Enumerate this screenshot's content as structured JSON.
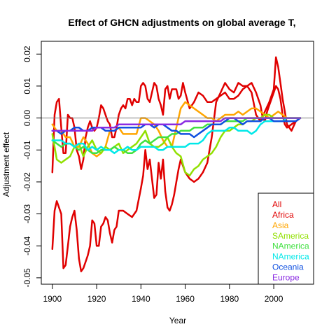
{
  "chart_data": {
    "type": "line",
    "title": "Effect of GHCN adjustments on global average T,",
    "xlabel": "Year",
    "ylabel": "Adjustment effect",
    "xlim": [
      1895,
      2018
    ],
    "ylim": [
      -0.052,
      0.024
    ],
    "x_ticks": [
      {
        "value": 1900,
        "label": "1900"
      },
      {
        "value": 1920,
        "label": "1920"
      },
      {
        "value": 1940,
        "label": "1940"
      },
      {
        "value": 1960,
        "label": "1960"
      },
      {
        "value": 1980,
        "label": "1980"
      },
      {
        "value": 2000,
        "label": "2000"
      }
    ],
    "y_ticks": [
      {
        "value": -0.05,
        "label": "-0.05"
      },
      {
        "value": -0.04,
        "label": "-0.04"
      },
      {
        "value": -0.03,
        "label": "-0.03"
      },
      {
        "value": -0.02,
        "label": "-0.02"
      },
      {
        "value": -0.01,
        "label": "-0.01"
      },
      {
        "value": 0.0,
        "label": "0.00"
      },
      {
        "value": 0.01,
        "label": "0.01"
      },
      {
        "value": 0.02,
        "label": "0.02"
      }
    ],
    "reference_line": {
      "y": 0,
      "color": "#808080"
    },
    "grid": false,
    "legend_position": "bottom-right",
    "legend_title": "All",
    "legend_title_color": "#e00000",
    "series": [
      {
        "name": "Africa",
        "color": "#e00000",
        "x": [
          1900,
          1901,
          1902,
          1903,
          1904,
          1905,
          1906,
          1907,
          1908,
          1909,
          1910,
          1911,
          1912,
          1913,
          1914,
          1915,
          1916,
          1917,
          1918,
          1919,
          1920,
          1921,
          1922,
          1923,
          1924,
          1925,
          1926,
          1927,
          1928,
          1929,
          1930,
          1932,
          1934,
          1936,
          1938,
          1940,
          1941,
          1942,
          1943,
          1944,
          1945,
          1946,
          1947,
          1948,
          1949,
          1950,
          1951,
          1952,
          1953,
          1954,
          1955,
          1956,
          1957,
          1958,
          1960,
          1962,
          1964,
          1966,
          1968,
          1970,
          1972,
          1974,
          1976,
          1978,
          1980,
          1982,
          1984,
          1986,
          1988,
          1990,
          1992,
          1994,
          1996,
          1998,
          2000,
          2001,
          2002,
          2003,
          2004,
          2005,
          2006,
          2008,
          2010,
          2012
        ],
        "y": [
          -0.041,
          -0.029,
          -0.026,
          -0.028,
          -0.03,
          -0.047,
          -0.046,
          -0.04,
          -0.034,
          -0.031,
          -0.029,
          -0.035,
          -0.044,
          -0.048,
          -0.047,
          -0.045,
          -0.043,
          -0.04,
          -0.032,
          -0.033,
          -0.04,
          -0.04,
          -0.034,
          -0.033,
          -0.031,
          -0.032,
          -0.036,
          -0.039,
          -0.035,
          -0.034,
          -0.029,
          -0.029,
          -0.03,
          -0.031,
          -0.029,
          -0.022,
          -0.018,
          -0.01,
          -0.016,
          -0.013,
          -0.019,
          -0.025,
          -0.024,
          -0.014,
          -0.019,
          -0.013,
          -0.023,
          -0.028,
          -0.029,
          -0.027,
          -0.024,
          -0.02,
          -0.016,
          -0.013,
          -0.017,
          -0.019,
          -0.02,
          -0.019,
          -0.017,
          -0.014,
          -0.006,
          0.005,
          0.008,
          0.011,
          0.009,
          0.008,
          0.011,
          0.01,
          0.01,
          0.008,
          0.001,
          -0.001,
          0.002,
          0.005,
          0.009,
          0.019,
          0.016,
          0.011,
          0.006,
          0.002,
          -0.002,
          -0.004,
          -0.001,
          0
        ]
      },
      {
        "name": "All",
        "color": "#e00000",
        "x": [
          1900,
          1901,
          1902,
          1903,
          1904,
          1905,
          1906,
          1907,
          1908,
          1909,
          1910,
          1911,
          1912,
          1913,
          1914,
          1915,
          1916,
          1917,
          1918,
          1919,
          1920,
          1921,
          1922,
          1923,
          1924,
          1925,
          1926,
          1927,
          1928,
          1929,
          1930,
          1931,
          1932,
          1933,
          1934,
          1935,
          1936,
          1937,
          1938,
          1939,
          1940,
          1941,
          1942,
          1943,
          1944,
          1945,
          1946,
          1947,
          1948,
          1949,
          1950,
          1951,
          1952,
          1953,
          1954,
          1955,
          1956,
          1957,
          1958,
          1959,
          1960,
          1962,
          1964,
          1966,
          1968,
          1970,
          1972,
          1974,
          1976,
          1978,
          1980,
          1982,
          1984,
          1986,
          1988,
          1990,
          1992,
          1994,
          1995,
          1996,
          1997,
          1998,
          2000,
          2001,
          2002,
          2003,
          2004,
          2005,
          2006,
          2008,
          2010,
          2012
        ],
        "y": [
          -0.017,
          0.001,
          0.005,
          0.006,
          -0.003,
          -0.011,
          -0.011,
          0.001,
          0.0,
          0.0,
          -0.003,
          -0.01,
          -0.012,
          -0.016,
          -0.013,
          -0.006,
          -0.003,
          -0.001,
          -0.003,
          -0.004,
          -0.003,
          0.0,
          0.004,
          0.003,
          0.001,
          -0.001,
          -0.002,
          -0.006,
          -0.006,
          -0.003,
          0.001,
          0.003,
          0.004,
          0.003,
          0.006,
          0.006,
          0.004,
          0.006,
          0.005,
          0.005,
          0.01,
          0.011,
          0.01,
          0.006,
          0.005,
          0.008,
          0.011,
          0.01,
          0.006,
          0.004,
          0.001,
          0.009,
          0.01,
          0.006,
          0.009,
          0.009,
          0.009,
          0.006,
          0.007,
          0.011,
          0.008,
          0.003,
          0.005,
          0.008,
          0.007,
          0.005,
          0.005,
          0.006,
          0.007,
          0.008,
          0.006,
          0.006,
          0.007,
          0.009,
          0.01,
          0.011,
          0.008,
          0.004,
          0.0,
          -0.001,
          0.002,
          0.004,
          0.008,
          0.01,
          0.009,
          0.006,
          0.001,
          -0.002,
          -0.003,
          -0.002,
          -0.001,
          0.0
        ]
      },
      {
        "name": "Asia",
        "color": "#ffa500",
        "x": [
          1900,
          1902,
          1904,
          1906,
          1908,
          1910,
          1912,
          1914,
          1916,
          1918,
          1920,
          1922,
          1924,
          1926,
          1928,
          1930,
          1932,
          1934,
          1936,
          1938,
          1940,
          1942,
          1944,
          1946,
          1948,
          1950,
          1952,
          1954,
          1956,
          1958,
          1960,
          1962,
          1964,
          1966,
          1968,
          1970,
          1972,
          1974,
          1976,
          1978,
          1980,
          1982,
          1984,
          1986,
          1988,
          1990,
          1992,
          1994,
          1996,
          1998,
          2000,
          2002,
          2004,
          2006,
          2008,
          2010,
          2012
        ],
        "y": [
          -0.002,
          -0.004,
          -0.004,
          -0.006,
          -0.006,
          -0.009,
          -0.009,
          -0.006,
          -0.008,
          -0.011,
          -0.012,
          -0.011,
          -0.009,
          -0.004,
          -0.004,
          -0.003,
          -0.005,
          -0.005,
          -0.005,
          -0.005,
          0.0,
          0.0,
          -0.001,
          -0.002,
          -0.004,
          -0.007,
          -0.009,
          -0.009,
          -0.003,
          0.003,
          0.005,
          0.004,
          0.003,
          0.002,
          0.001,
          0.0,
          0.0,
          -0.001,
          0.0,
          0.001,
          0.001,
          0.001,
          0.002,
          0.001,
          0.002,
          0.003,
          0.003,
          0.002,
          0.001,
          0.0,
          0.001,
          0.002,
          0.001,
          0.0,
          0.0,
          0.0,
          0.0
        ]
      },
      {
        "name": "SAmerica",
        "color": "#90e000",
        "x": [
          1900,
          1902,
          1904,
          1906,
          1908,
          1910,
          1912,
          1914,
          1916,
          1918,
          1920,
          1922,
          1924,
          1926,
          1928,
          1930,
          1932,
          1934,
          1936,
          1938,
          1940,
          1942,
          1944,
          1946,
          1948,
          1950,
          1952,
          1954,
          1956,
          1958,
          1960,
          1962,
          1964,
          1966,
          1968,
          1970,
          1972,
          1974,
          1976,
          1978,
          1980,
          1982,
          1984,
          1986,
          1988,
          1990,
          1992,
          1994,
          1996,
          1998,
          2000,
          2002,
          2004,
          2006,
          2008,
          2010,
          2012
        ],
        "y": [
          -0.005,
          -0.013,
          -0.014,
          -0.013,
          -0.012,
          -0.009,
          -0.008,
          -0.012,
          -0.009,
          -0.007,
          -0.01,
          -0.011,
          -0.009,
          -0.01,
          -0.009,
          -0.008,
          -0.011,
          -0.01,
          -0.009,
          -0.008,
          -0.006,
          -0.004,
          -0.008,
          -0.009,
          -0.009,
          -0.008,
          -0.006,
          -0.009,
          -0.011,
          -0.012,
          -0.017,
          -0.018,
          -0.016,
          -0.015,
          -0.013,
          -0.012,
          -0.011,
          -0.009,
          -0.006,
          -0.004,
          -0.004,
          -0.003,
          -0.002,
          -0.002,
          -0.001,
          -0.001,
          0.0,
          0.0,
          0.001,
          0.001,
          0.0,
          0.0,
          0.0,
          0.0,
          0.0,
          0.0,
          0.0
        ]
      },
      {
        "name": "NAmerica",
        "color": "#40e040",
        "x": [
          1900,
          1902,
          1904,
          1906,
          1908,
          1910,
          1912,
          1914,
          1916,
          1918,
          1920,
          1922,
          1924,
          1926,
          1928,
          1930,
          1932,
          1934,
          1936,
          1938,
          1940,
          1942,
          1944,
          1946,
          1948,
          1950,
          1952,
          1954,
          1956,
          1958,
          1960,
          1962,
          1964,
          1966,
          1968,
          1970,
          1972,
          1974,
          1976,
          1978,
          1980,
          1982,
          1984,
          1986,
          1988,
          1990,
          1992,
          1994,
          1996,
          1998,
          2000,
          2002,
          2004,
          2006,
          2008,
          2010,
          2012
        ],
        "y": [
          -0.007,
          -0.008,
          -0.009,
          -0.008,
          -0.008,
          -0.009,
          -0.01,
          -0.009,
          -0.01,
          -0.011,
          -0.011,
          -0.01,
          -0.01,
          -0.01,
          -0.009,
          -0.01,
          -0.01,
          -0.011,
          -0.011,
          -0.01,
          -0.008,
          -0.007,
          -0.008,
          -0.007,
          -0.006,
          -0.006,
          -0.006,
          -0.005,
          -0.005,
          -0.004,
          -0.004,
          -0.004,
          -0.003,
          -0.003,
          -0.003,
          -0.002,
          -0.002,
          -0.002,
          -0.002,
          -0.001,
          -0.001,
          -0.001,
          -0.001,
          -0.001,
          0.0,
          0.0,
          0.0,
          0.0,
          0.0,
          0.0,
          0.0,
          0.0,
          0.0,
          0.0,
          0.0,
          0.0,
          0.0
        ]
      },
      {
        "name": "NAmerica",
        "color": "#00e8e8",
        "x": [
          1900,
          1902,
          1904,
          1906,
          1908,
          1910,
          1912,
          1914,
          1916,
          1918,
          1920,
          1922,
          1924,
          1926,
          1928,
          1930,
          1932,
          1934,
          1936,
          1938,
          1940,
          1942,
          1944,
          1946,
          1948,
          1950,
          1952,
          1954,
          1956,
          1958,
          1960,
          1962,
          1964,
          1966,
          1968,
          1970,
          1972,
          1974,
          1976,
          1978,
          1980,
          1982,
          1984,
          1986,
          1988,
          1990,
          1992,
          1994,
          1996,
          1998,
          2000,
          2002,
          2004,
          2006,
          2008,
          2010,
          2012
        ],
        "y": [
          -0.007,
          -0.007,
          -0.007,
          -0.008,
          -0.008,
          -0.009,
          -0.008,
          -0.008,
          -0.01,
          -0.009,
          -0.01,
          -0.009,
          -0.01,
          -0.01,
          -0.011,
          -0.01,
          -0.01,
          -0.009,
          -0.01,
          -0.01,
          -0.009,
          -0.009,
          -0.009,
          -0.009,
          -0.01,
          -0.01,
          -0.009,
          -0.009,
          -0.009,
          -0.009,
          -0.009,
          -0.008,
          -0.008,
          -0.008,
          -0.007,
          -0.005,
          -0.004,
          -0.004,
          -0.004,
          -0.004,
          -0.003,
          -0.003,
          -0.004,
          -0.004,
          -0.004,
          -0.005,
          -0.004,
          -0.002,
          -0.001,
          -0.001,
          -0.001,
          -0.001,
          -0.001,
          0.0,
          0.0,
          0.0,
          0.0
        ]
      },
      {
        "name": "Oceania",
        "color": "#1050e0",
        "x": [
          1900,
          1902,
          1904,
          1906,
          1908,
          1910,
          1912,
          1914,
          1916,
          1918,
          1920,
          1922,
          1924,
          1926,
          1928,
          1930,
          1932,
          1934,
          1936,
          1938,
          1940,
          1942,
          1944,
          1946,
          1948,
          1950,
          1952,
          1954,
          1956,
          1958,
          1960,
          1962,
          1964,
          1966,
          1968,
          1970,
          1972,
          1974,
          1976,
          1978,
          1980,
          1982,
          1984,
          1986,
          1988,
          1990,
          1992,
          1994,
          1996,
          1998,
          2000,
          2002,
          2004,
          2006,
          2008,
          2010,
          2012
        ],
        "y": [
          -0.004,
          -0.004,
          -0.005,
          -0.004,
          -0.004,
          -0.003,
          -0.003,
          -0.004,
          -0.004,
          -0.003,
          -0.003,
          -0.003,
          -0.004,
          -0.004,
          -0.004,
          -0.003,
          -0.003,
          -0.003,
          -0.003,
          -0.003,
          -0.003,
          -0.002,
          -0.002,
          -0.003,
          -0.002,
          -0.002,
          -0.003,
          -0.004,
          -0.004,
          -0.005,
          -0.005,
          -0.005,
          -0.006,
          -0.005,
          -0.004,
          -0.003,
          -0.002,
          -0.002,
          -0.002,
          -0.001,
          0.0,
          0.0,
          -0.001,
          -0.002,
          -0.001,
          -0.001,
          -0.001,
          -0.001,
          0.0,
          0.0,
          -0.001,
          -0.001,
          -0.001,
          -0.001,
          -0.001,
          -0.001,
          0.0
        ]
      },
      {
        "name": "Europe",
        "color": "#8a2be2",
        "x": [
          1900,
          1902,
          1904,
          1906,
          1908,
          1910,
          1912,
          1914,
          1916,
          1918,
          1920,
          1922,
          1924,
          1926,
          1928,
          1930,
          1932,
          1934,
          1936,
          1938,
          1940,
          1942,
          1944,
          1946,
          1948,
          1950,
          1952,
          1954,
          1956,
          1958,
          1960,
          1962,
          1964,
          1966,
          1968,
          1970,
          1972,
          1974,
          1976,
          1978,
          1980,
          1982,
          1984,
          1986,
          1988,
          1990,
          1992,
          1994,
          1996,
          1998,
          2000,
          2002,
          2004,
          2006,
          2008,
          2010,
          2012
        ],
        "y": [
          -0.004,
          -0.004,
          -0.004,
          -0.004,
          -0.004,
          -0.004,
          -0.004,
          -0.004,
          -0.004,
          -0.004,
          -0.003,
          -0.003,
          -0.003,
          -0.003,
          -0.003,
          -0.002,
          -0.002,
          -0.002,
          -0.002,
          -0.002,
          -0.002,
          -0.002,
          -0.002,
          -0.002,
          -0.002,
          -0.002,
          -0.002,
          -0.002,
          -0.002,
          -0.002,
          -0.001,
          -0.001,
          -0.001,
          -0.001,
          -0.001,
          -0.001,
          -0.001,
          -0.001,
          -0.001,
          0.0,
          0.0,
          0.0,
          0.0,
          0.0,
          0.0,
          0.0,
          0.0,
          0.0,
          0.0,
          0.0,
          0.0,
          0.0,
          0.0,
          0.0,
          0.0,
          0.0,
          0.0
        ]
      }
    ]
  }
}
